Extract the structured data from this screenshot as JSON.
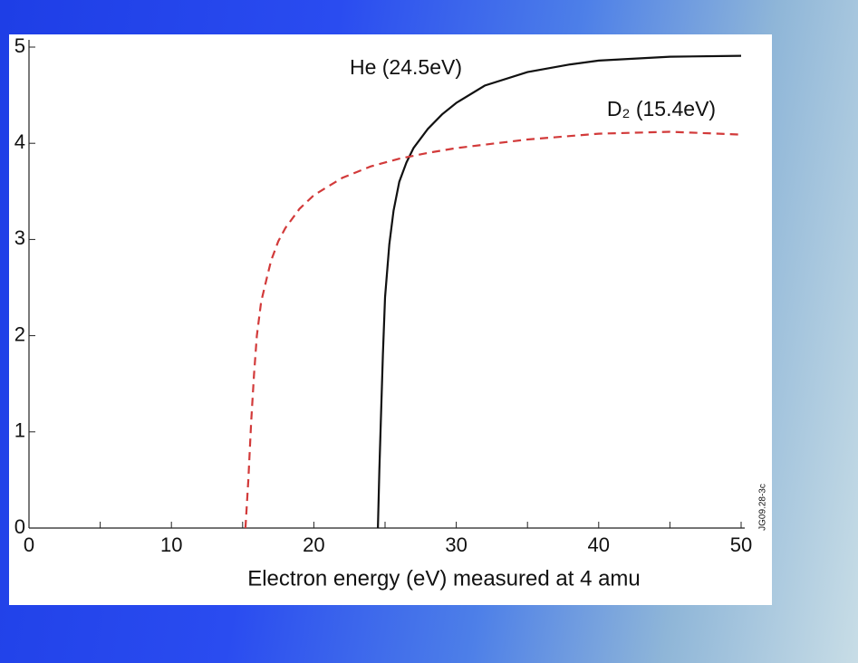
{
  "chart_data": {
    "type": "line",
    "xlabel": "Electron energy (eV) measured at 4 amu",
    "xlim": [
      0,
      50
    ],
    "xticks": [
      0,
      10,
      20,
      30,
      40,
      50
    ],
    "xminorticks": [
      5,
      15,
      25,
      35,
      45
    ],
    "ylim": [
      0,
      5
    ],
    "yticks": [
      0,
      1,
      2,
      3,
      4,
      5
    ],
    "series": [
      {
        "name": "He (24.5eV)",
        "color": "#111111",
        "dash": false,
        "x": [
          24.5,
          24.6,
          24.7,
          24.85,
          25,
          25.3,
          25.6,
          26,
          26.5,
          27,
          28,
          29,
          30,
          32,
          35,
          38,
          40,
          45,
          50
        ],
        "values": [
          0,
          0.6,
          1.1,
          1.8,
          2.4,
          2.95,
          3.3,
          3.6,
          3.8,
          3.95,
          4.15,
          4.3,
          4.42,
          4.6,
          4.74,
          4.82,
          4.86,
          4.9,
          4.91
        ]
      },
      {
        "name": "D₂ (15.4eV)",
        "color": "#d23a3a",
        "dash": true,
        "x": [
          15.2,
          15.4,
          15.6,
          15.8,
          16,
          16.3,
          16.7,
          17,
          17.5,
          18,
          19,
          20,
          22,
          24,
          26,
          28,
          30,
          35,
          40,
          45,
          50
        ],
        "values": [
          0,
          0.5,
          1.1,
          1.6,
          2.0,
          2.35,
          2.6,
          2.78,
          2.98,
          3.12,
          3.32,
          3.46,
          3.64,
          3.76,
          3.84,
          3.9,
          3.95,
          4.04,
          4.1,
          4.12,
          4.09
        ]
      }
    ],
    "code_label": "JG09.28-3c"
  }
}
